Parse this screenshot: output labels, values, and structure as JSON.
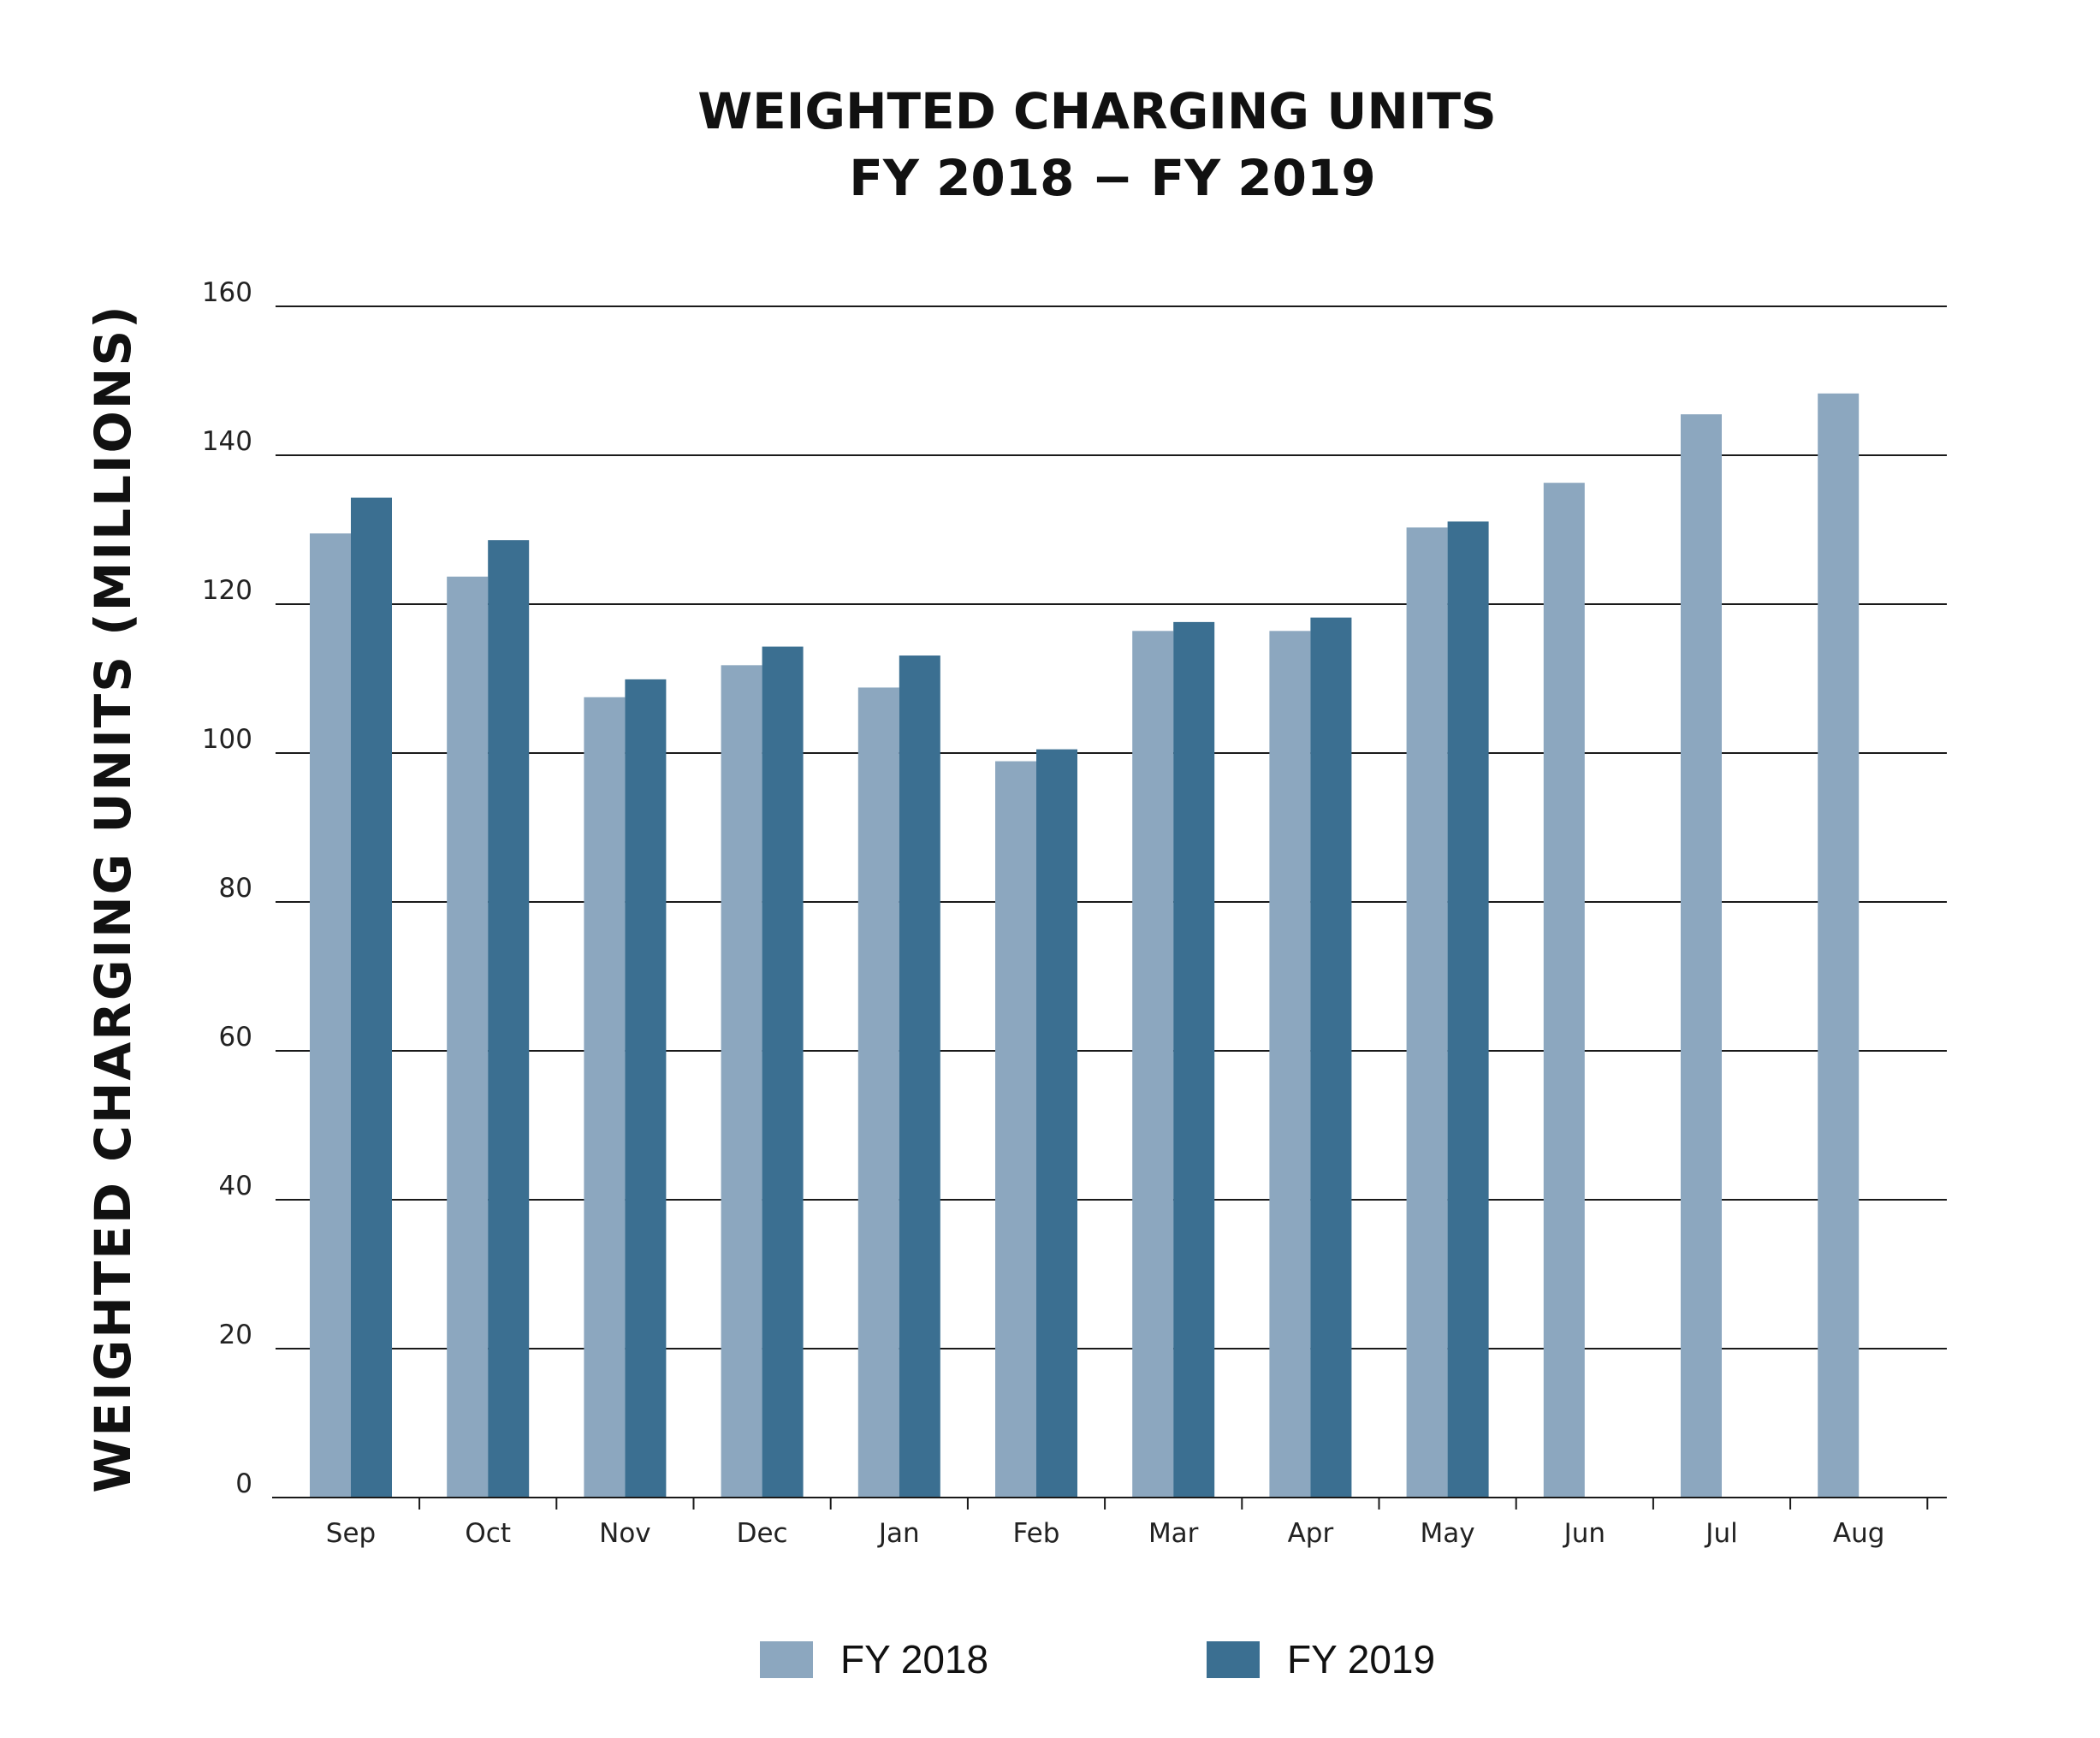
{
  "chart_data": {
    "type": "bar",
    "title": [
      "WEIGHTED CHARGING UNITS",
      "FY 2018 − FY 2019"
    ],
    "xlabel": "",
    "ylabel": "WEIGHTED CHARGING UNITS (MILLIONS)",
    "ylim": [
      0,
      160
    ],
    "yticks": [
      "0",
      "20",
      "40",
      "60",
      "80",
      "100",
      "120",
      "140",
      "160"
    ],
    "grid": true,
    "legend_position": "bottom",
    "categories": [
      "Sep",
      "Oct",
      "Nov",
      "Dec",
      "Jan",
      "Feb",
      "Mar",
      "Apr",
      "May",
      "Jun",
      "Jul",
      "Aug"
    ],
    "series": [
      {
        "name": "FY 2018",
        "color": "#8ca7bf",
        "values": [
          129.5,
          123.7,
          107.5,
          111.8,
          108.8,
          98.9,
          116.4,
          116.4,
          130.3,
          136.3,
          145.5,
          148.3
        ]
      },
      {
        "name": "FY 2019",
        "color": "#3b6f91",
        "values": [
          134.3,
          128.6,
          109.9,
          114.3,
          113.1,
          100.5,
          117.6,
          118.2,
          131.1,
          null,
          null,
          null
        ]
      }
    ]
  }
}
